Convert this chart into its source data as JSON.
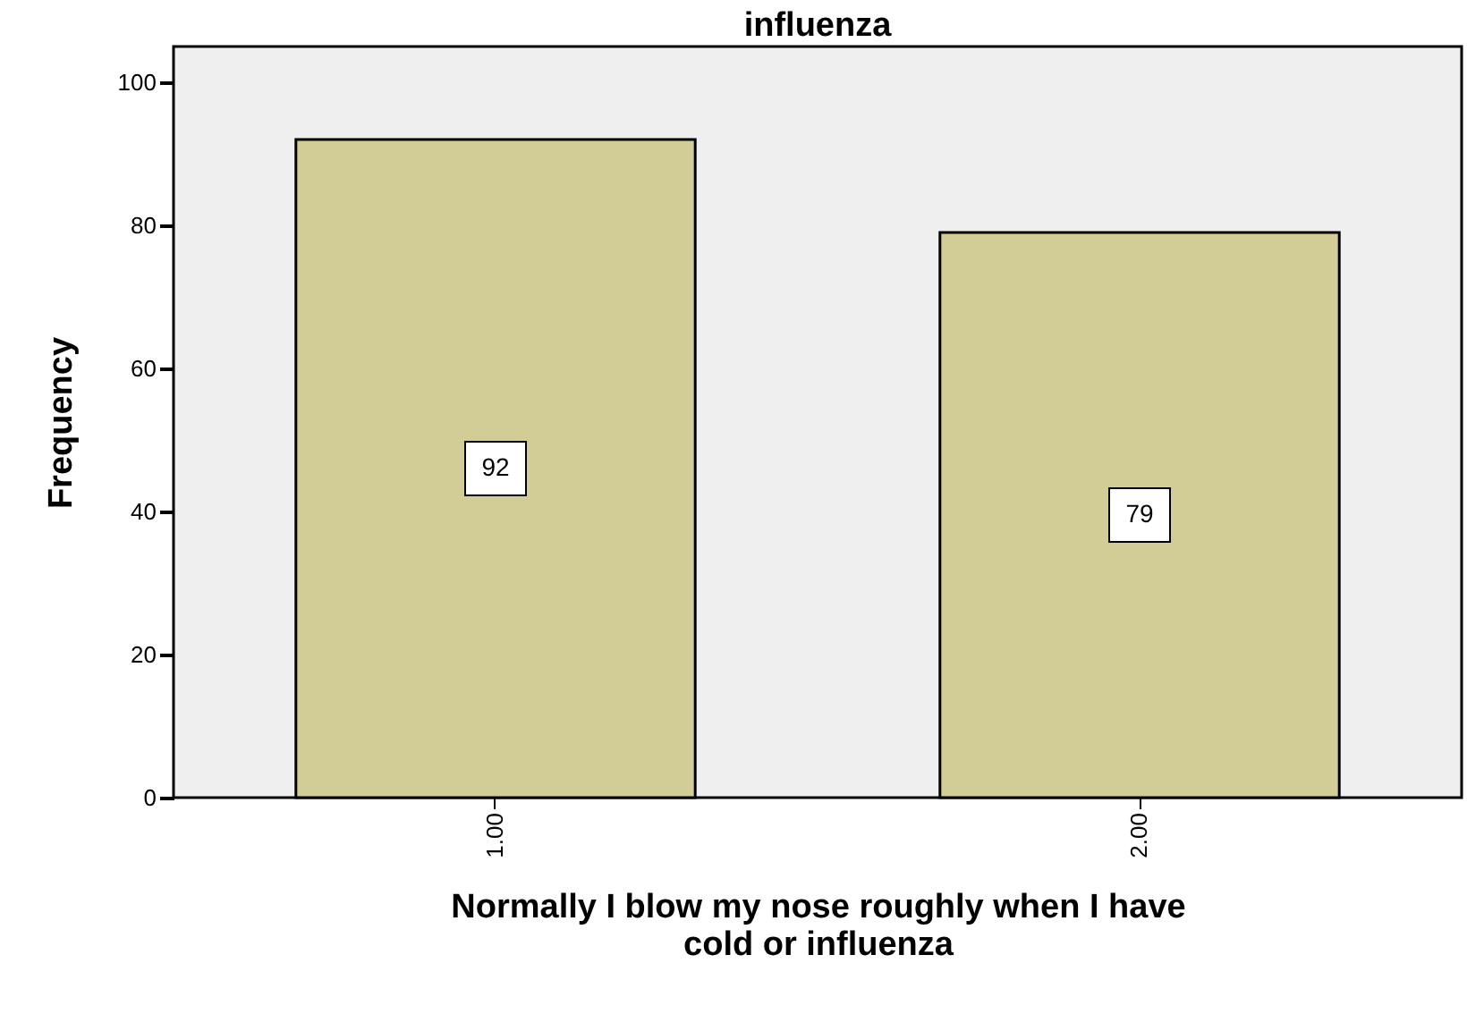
{
  "chart_data": {
    "type": "bar",
    "title": "influenza",
    "xlabel": [
      "Normally I blow my nose roughly when I have",
      "cold or influenza"
    ],
    "ylabel": "Frequency",
    "categories": [
      "1.00",
      "2.00"
    ],
    "values": [
      92,
      79
    ],
    "color": "#d2cd96",
    "ylim": [
      0,
      105
    ],
    "yticks": [
      0,
      20,
      40,
      60,
      80,
      100
    ],
    "grid": false,
    "data_labels": true
  }
}
